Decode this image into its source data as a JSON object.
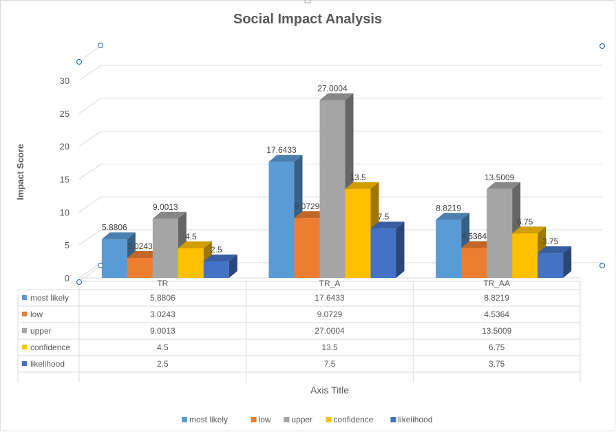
{
  "chart_data": {
    "type": "bar",
    "title": "Social Impact Analysis",
    "ylabel": "Impact Score",
    "xlabel": "Axis Title",
    "ylim": [
      0,
      30
    ],
    "yticks": [
      0,
      5,
      10,
      15,
      20,
      25,
      30
    ],
    "grid": true,
    "legend_position": "bottom",
    "data_table": true,
    "categories": [
      "TR",
      "TR_A",
      "TR_AA"
    ],
    "series": [
      {
        "name": "most likely",
        "color": "#5b9bd5",
        "values": [
          5.8806,
          17.6433,
          8.8219
        ],
        "labels": [
          "5.8806",
          "17.6433",
          "8.8219"
        ]
      },
      {
        "name": "low",
        "color": "#ed7d31",
        "values": [
          3.0243,
          9.0729,
          4.5364
        ],
        "labels": [
          "3.0243",
          "9.0729",
          "4.5364"
        ]
      },
      {
        "name": "upper",
        "color": "#a5a5a5",
        "values": [
          9.0013,
          27.0004,
          13.5009
        ],
        "labels": [
          "9.0013",
          "27.0004",
          "13.5009"
        ]
      },
      {
        "name": "confidence",
        "color": "#ffc000",
        "values": [
          4.5,
          13.5,
          6.75
        ],
        "labels": [
          "4.5",
          "13.5",
          "6.75"
        ]
      },
      {
        "name": "likelihood",
        "color": "#4472c4",
        "values": [
          2.5,
          7.5,
          3.75
        ],
        "labels": [
          "2.5",
          "7.5",
          "3.75"
        ]
      }
    ]
  }
}
